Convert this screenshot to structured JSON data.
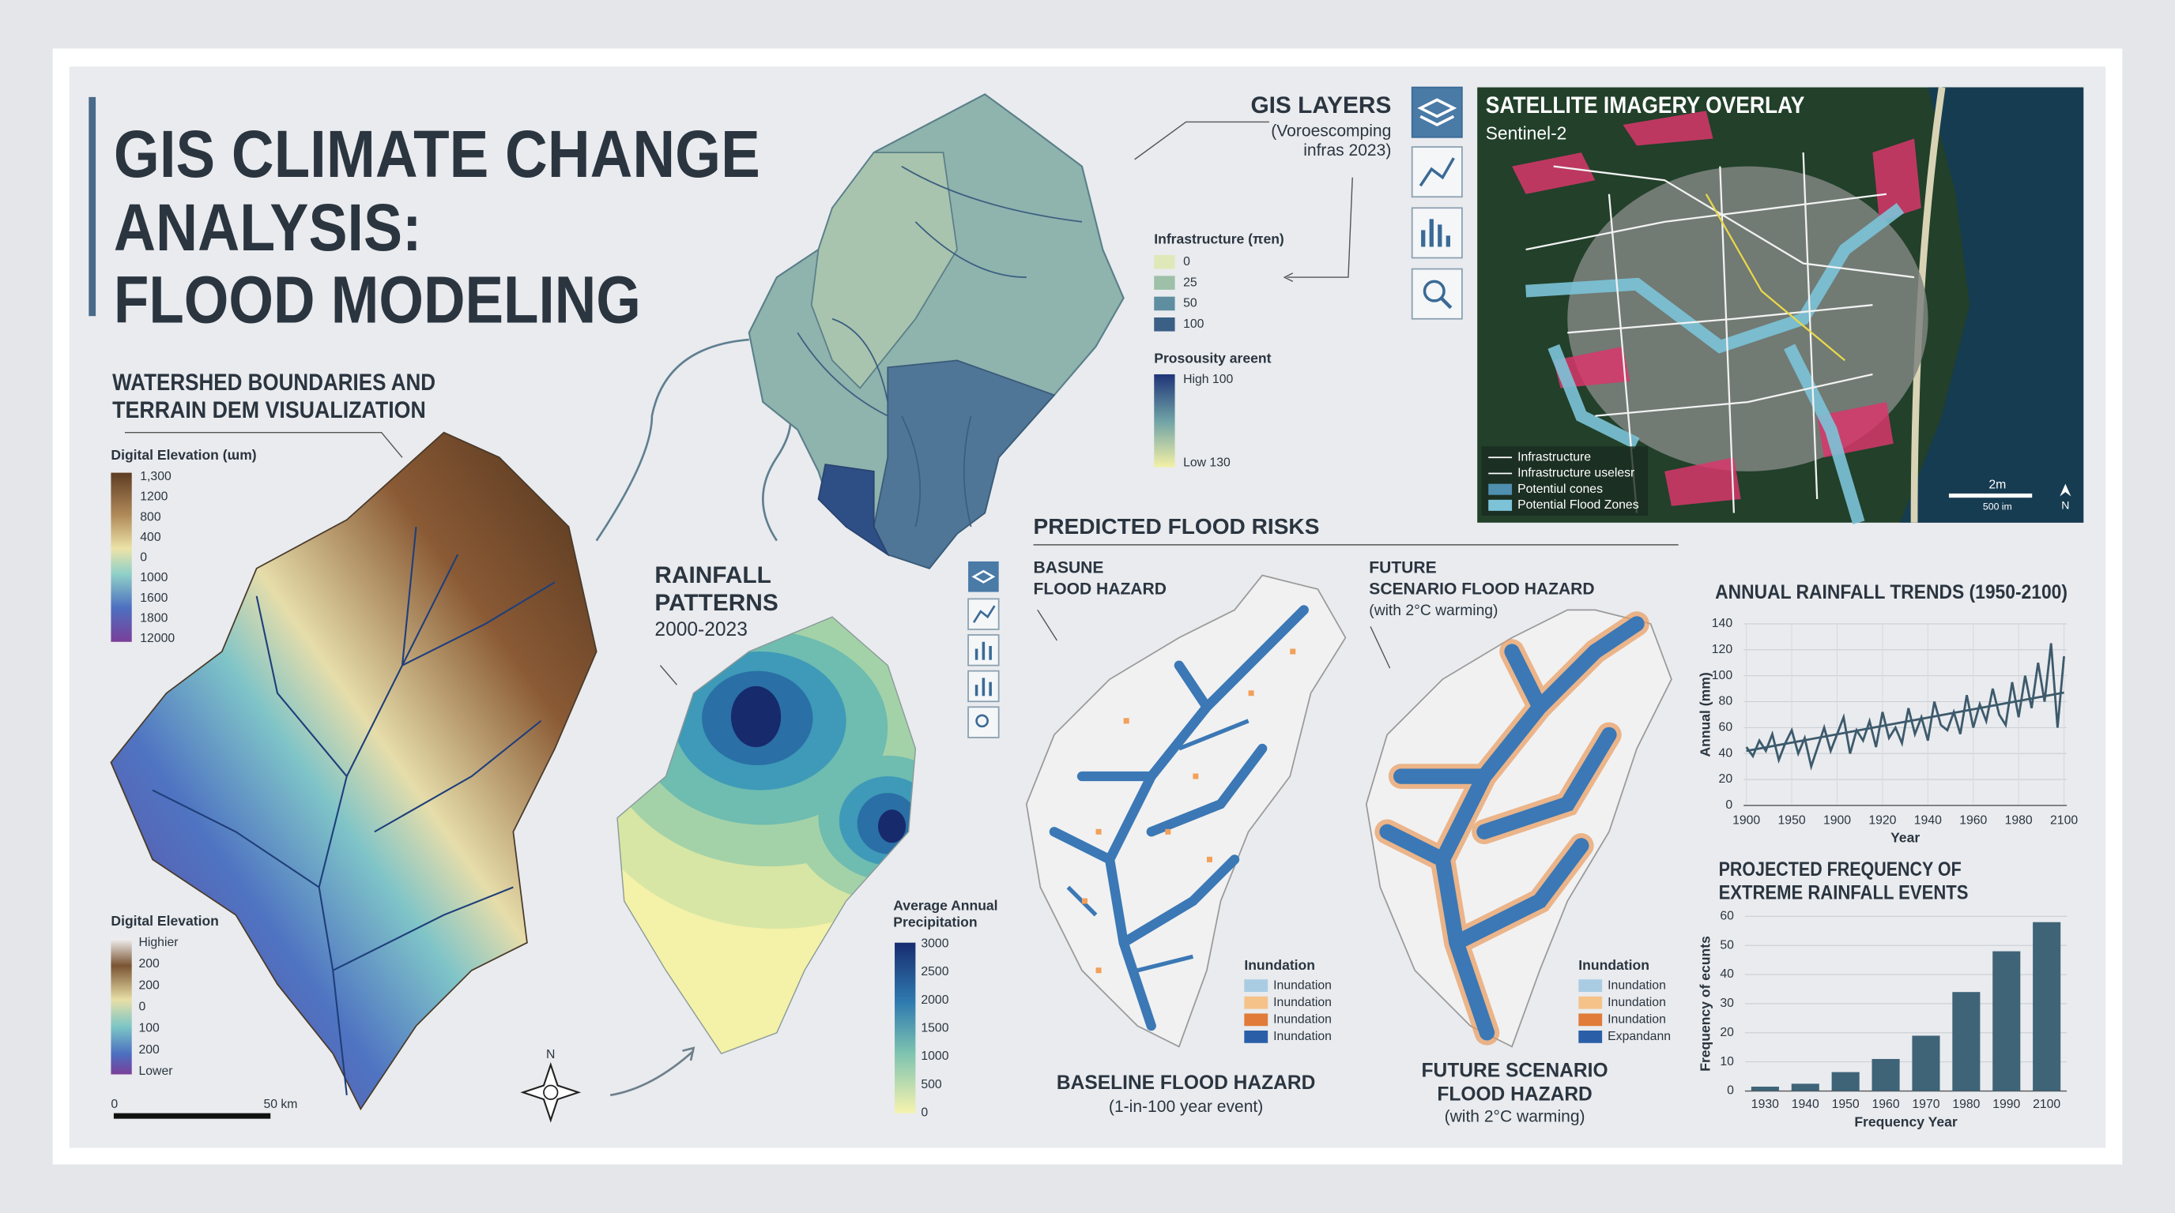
{
  "header": {
    "title_lines": [
      "GIS CLIMATE CHANGE",
      "ANALYSIS:",
      "FLOOD MODELING"
    ]
  },
  "dem_panel": {
    "heading_lines": [
      "WATERSHED BOUNDARIES AND",
      "TERRAIN DEM VISUALIZATION"
    ],
    "legend_top": {
      "title": "Digital Elevation (ɯm)",
      "labels": [
        "1,300",
        "1200",
        "800",
        "400",
        "0",
        "1000",
        "1600",
        "1800",
        "12000"
      ]
    },
    "legend_bottom": {
      "title": "Digital Elevation",
      "labels": [
        "Highier",
        "200",
        "200",
        "0",
        "100",
        "200",
        "Lower"
      ]
    },
    "scale_labels": [
      "0",
      "50 km"
    ],
    "north": "N"
  },
  "gis_layers": {
    "title": "GIS LAYERS",
    "subtitle_lines": [
      "(Voroescomping",
      "infras 2023)"
    ],
    "infrastructure_legend": {
      "title": "Infrastructure (πen)",
      "labels": [
        "0",
        "25",
        "50",
        "100"
      ],
      "colors": [
        "#dfe8b8",
        "#9fc0a8",
        "#5f8ea0",
        "#3c5f86"
      ]
    },
    "porosity_legend": {
      "title": "Prosousity areent",
      "high": "High 100",
      "low": "Low 130"
    }
  },
  "satellite": {
    "title": "SATELLITE IMAGERY OVERLAY",
    "subtitle": "Sentinel-2",
    "legend": [
      "Infrastructure",
      "Infrastructure uselesr",
      "Potentiul cones",
      "Potential Flood Zones"
    ],
    "scale_labels": [
      "2m",
      "500 im"
    ],
    "north": "N"
  },
  "rainfall": {
    "heading_lines": [
      "RAINFALL",
      "PATTERNS",
      "2000-2023"
    ],
    "legend": {
      "title_lines": [
        "Average Annual",
        "Precipitation"
      ],
      "labels": [
        "3000",
        "2500",
        "2000",
        "1500",
        "1000",
        "500",
        "0"
      ]
    }
  },
  "flood": {
    "heading": "PREDICTED FLOOD RISKS",
    "baseline": {
      "label_lines": [
        "BASUNE",
        "FLOOD HAZARD"
      ],
      "legend_title": "Inundation",
      "legend_items": [
        "Inundation",
        "Inundation",
        "Inundation",
        "Inundation"
      ],
      "caption_lines": [
        "BASELINE FLOOD HAZARD",
        "(1-in-100 year event)"
      ]
    },
    "future": {
      "label_lines": [
        "FUTURE",
        "SCENARIO FLOOD HAZARD",
        "(with 2°C warming)"
      ],
      "legend_title": "Inundation",
      "legend_items": [
        "Inundation",
        "Inundation",
        "Inundation",
        "Expandann"
      ],
      "caption_lines": [
        "FUTURE SCENARIO",
        "FLOOD HAZARD",
        "(with 2°C warming)"
      ]
    },
    "legend_colors": [
      "#a9cce3",
      "#f5c28a",
      "#e07b39",
      "#2a5fa8"
    ]
  },
  "chart_data": [
    {
      "type": "line",
      "title": "ANNUAL RAINFALL TRENDS (1950-2100)",
      "y_label": "Annual (mm)",
      "x_label": "Year",
      "categories": [
        "1900",
        null,
        null,
        null,
        null,
        null,
        null,
        "1950",
        null,
        null,
        null,
        null,
        null,
        null,
        "1900",
        null,
        null,
        null,
        null,
        null,
        null,
        "1920",
        null,
        null,
        null,
        null,
        null,
        null,
        "1940",
        null,
        null,
        null,
        null,
        null,
        null,
        "1960",
        null,
        null,
        null,
        null,
        null,
        null,
        "1980",
        null,
        null,
        null,
        null,
        null,
        null,
        "2100"
      ],
      "ylim": [
        0,
        140
      ],
      "yticks": [
        0,
        20,
        40,
        60,
        80,
        100,
        120,
        140
      ],
      "grid": true,
      "series": [
        {
          "color": "#3d5a6c",
          "values": [
            45,
            38,
            50,
            42,
            55,
            35,
            48,
            58,
            40,
            52,
            30,
            45,
            60,
            42,
            55,
            68,
            40,
            58,
            50,
            65,
            45,
            72,
            52,
            60,
            48,
            75,
            55,
            68,
            50,
            80,
            62,
            58,
            72,
            55,
            85,
            60,
            78,
            65,
            90,
            70,
            62,
            95,
            68,
            100,
            75,
            110,
            80,
            125,
            60,
            115
          ]
        }
      ],
      "trend": {
        "color": "#3d5a6c",
        "values": [
          42,
          87
        ]
      }
    },
    {
      "type": "bar",
      "title_lines": [
        "PROJECTED FREQUENCY OF",
        "EXTREME RAINFALL EVENTS"
      ],
      "y_label": "Frequency of ecunts",
      "x_label": "Frequency Year",
      "categories": [
        "1930",
        "1940",
        "1950",
        "1960",
        "1970",
        "1980",
        "1990",
        "2100"
      ],
      "values": [
        1.5,
        2.5,
        6.5,
        11,
        19,
        34,
        48,
        58
      ],
      "color": "#3f6478",
      "ylim": [
        0,
        60
      ],
      "yticks": [
        0,
        10,
        20,
        30,
        40,
        50,
        60
      ],
      "grid": true
    }
  ]
}
